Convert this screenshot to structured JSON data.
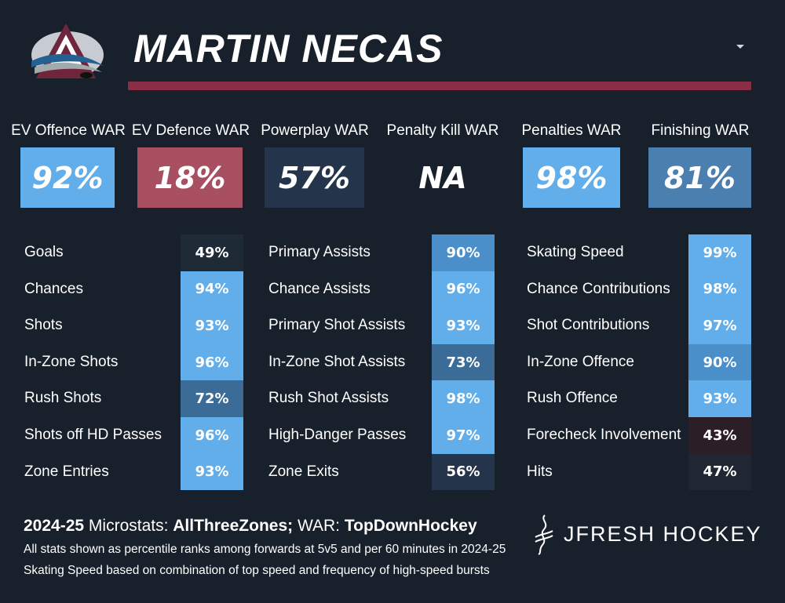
{
  "player": {
    "name": "MARTIN NECAS"
  },
  "colors": {
    "background": "#18202b",
    "accent_bar": "#8b2d45",
    "strong_blue": "#62aeea",
    "mid_blue": "#4a8fca",
    "steel_blue": "#3a6c97",
    "dark_slate": "#24344a",
    "darker_slate": "#1f2a37",
    "maroon_dark": "#2b1e26",
    "war_red": "#a84f61"
  },
  "war": [
    {
      "label": "EV Offence WAR",
      "value": "92%"
    },
    {
      "label": "EV Defence WAR",
      "value": "18%"
    },
    {
      "label": "Powerplay WAR",
      "value": "57%"
    },
    {
      "label": "Penalty Kill WAR",
      "value": "NA"
    },
    {
      "label": "Penalties WAR",
      "value": "98%"
    },
    {
      "label": "Finishing WAR",
      "value": "81%"
    }
  ],
  "stats": [
    [
      {
        "label": "Goals",
        "value": "49%"
      },
      {
        "label": "Chances",
        "value": "94%"
      },
      {
        "label": "Shots",
        "value": "93%"
      },
      {
        "label": "In-Zone Shots",
        "value": "96%"
      },
      {
        "label": "Rush Shots",
        "value": "72%"
      },
      {
        "label": "Shots off HD Passes",
        "value": "96%"
      },
      {
        "label": "Zone Entries",
        "value": "93%"
      }
    ],
    [
      {
        "label": "Primary Assists",
        "value": "90%"
      },
      {
        "label": "Chance Assists",
        "value": "96%"
      },
      {
        "label": "Primary Shot Assists",
        "value": "93%"
      },
      {
        "label": "In-Zone Shot Assists",
        "value": "73%"
      },
      {
        "label": "Rush Shot Assists",
        "value": "98%"
      },
      {
        "label": "High-Danger Passes",
        "value": "97%"
      },
      {
        "label": "Zone Exits",
        "value": "56%"
      }
    ],
    [
      {
        "label": "Skating Speed",
        "value": "99%"
      },
      {
        "label": "Chance Contributions",
        "value": "98%"
      },
      {
        "label": "Shot Contributions",
        "value": "97%"
      },
      {
        "label": "In-Zone Offence",
        "value": "90%"
      },
      {
        "label": "Rush Offence",
        "value": "93%"
      },
      {
        "label": "Forecheck Involvement",
        "value": "43%"
      },
      {
        "label": "Hits",
        "value": "47%"
      }
    ]
  ],
  "footer": {
    "season": "2024-25",
    "microstats_text": " Microstats: ",
    "microstats_source": "AllThreeZones;",
    "war_text": " WAR: ",
    "war_source": "TopDownHockey",
    "note1": "All stats shown as percentile ranks among forwards at 5v5 and per 60 minutes in 2024-25",
    "note2": "Skating Speed based on combination of top speed and frequency of high-speed bursts"
  },
  "brand": {
    "name": "JFRESH HOCKEY"
  }
}
